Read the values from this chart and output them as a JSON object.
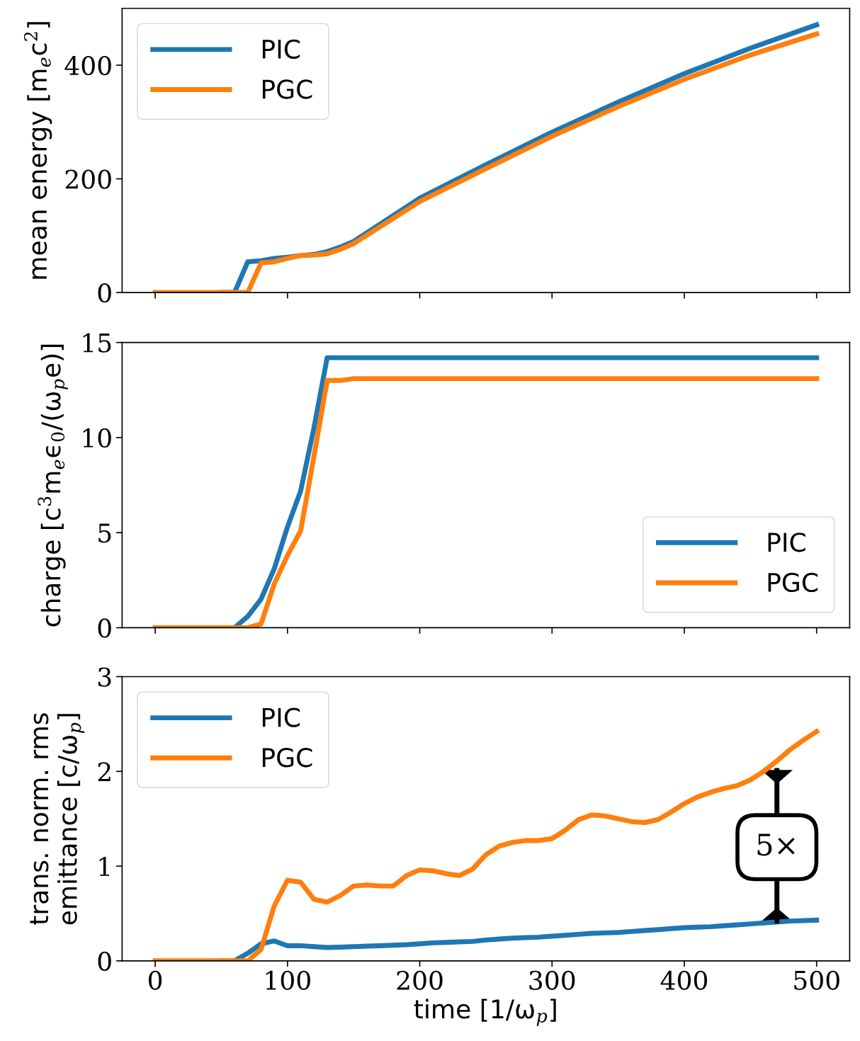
{
  "chart_data": [
    {
      "type": "line",
      "ylabel": "mean energy [m$_{e}$c$^{2}$]",
      "xlim": [
        -25,
        525
      ],
      "xticks": [
        0,
        100,
        200,
        300,
        400,
        500
      ],
      "ylim": [
        0,
        500
      ],
      "yticks": [
        0,
        200,
        400
      ],
      "tick_labels": "y",
      "grid": false,
      "legend": "top left",
      "x": [
        0,
        10,
        20,
        30,
        40,
        50,
        60,
        70,
        80,
        90,
        100,
        110,
        120,
        130,
        140,
        150,
        200,
        250,
        300,
        350,
        400,
        450,
        500
      ],
      "series": [
        {
          "name": "PIC",
          "color": "#1f77b4",
          "values": [
            null,
            null,
            null,
            null,
            null,
            0,
            0,
            54,
            56,
            60,
            62,
            65,
            67,
            72,
            80,
            90,
            166,
            225,
            282,
            335,
            385,
            430,
            471
          ]
        },
        {
          "name": "PGC",
          "color": "#ff7f0e",
          "values": [
            0,
            0,
            0,
            0,
            0,
            0,
            0,
            0,
            52,
            54,
            60,
            65,
            66,
            68,
            76,
            86,
            160,
            218,
            275,
            327,
            375,
            418,
            455
          ]
        }
      ]
    },
    {
      "type": "line",
      "ylabel": "charge [c$^{3}$m$_{e}$ϵ$_{0}$/(ω$_{p}$e)]",
      "xlim": [
        -25,
        525
      ],
      "xticks": [
        0,
        100,
        200,
        300,
        400,
        500
      ],
      "ylim": [
        0,
        15
      ],
      "yticks": [
        0,
        5,
        10,
        15
      ],
      "tick_labels": "y",
      "grid": false,
      "legend": "bottom right",
      "x": [
        0,
        10,
        20,
        30,
        40,
        50,
        60,
        70,
        80,
        90,
        100,
        110,
        120,
        130,
        140,
        150,
        500
      ],
      "series": [
        {
          "name": "PIC",
          "color": "#1f77b4",
          "values": [
            null,
            null,
            null,
            null,
            null,
            0,
            0,
            0.6,
            1.5,
            3.1,
            5.3,
            7.2,
            10.5,
            14.2,
            14.2,
            14.2,
            14.2
          ]
        },
        {
          "name": "PGC",
          "color": "#ff7f0e",
          "values": [
            0,
            0,
            0,
            0,
            0,
            0,
            0,
            0,
            0.2,
            2.3,
            3.8,
            5.1,
            9.0,
            13.0,
            13.0,
            13.1,
            13.1
          ]
        }
      ]
    },
    {
      "type": "line",
      "xlabel": "time [1/ω$_{p}$]",
      "ylabel": "trans. norm. rms\nemittance [c/ω$_{p}$]",
      "xlim": [
        -25,
        525
      ],
      "xticks": [
        0,
        100,
        200,
        300,
        400,
        500
      ],
      "ylim": [
        0,
        3
      ],
      "yticks": [
        0,
        1,
        2,
        3
      ],
      "grid": false,
      "legend": "top left",
      "annotations": [
        "5×"
      ],
      "x": [
        0,
        10,
        20,
        30,
        40,
        50,
        60,
        70,
        80,
        90,
        100,
        110,
        120,
        130,
        140,
        150,
        160,
        170,
        180,
        190,
        200,
        210,
        220,
        230,
        240,
        250,
        260,
        270,
        280,
        290,
        300,
        310,
        320,
        330,
        340,
        350,
        360,
        370,
        380,
        390,
        400,
        410,
        420,
        430,
        440,
        450,
        460,
        470,
        480,
        490,
        500
      ],
      "series": [
        {
          "name": "PIC",
          "color": "#1f77b4",
          "values": [
            null,
            null,
            null,
            null,
            null,
            0,
            0,
            0.08,
            0.18,
            0.21,
            0.16,
            0.16,
            0.15,
            0.14,
            0.145,
            0.15,
            0.155,
            0.16,
            0.165,
            0.17,
            0.18,
            0.19,
            0.195,
            0.2,
            0.205,
            0.22,
            0.23,
            0.24,
            0.245,
            0.25,
            0.26,
            0.27,
            0.28,
            0.29,
            0.295,
            0.3,
            0.31,
            0.32,
            0.33,
            0.34,
            0.35,
            0.355,
            0.36,
            0.37,
            0.38,
            0.39,
            0.4,
            0.41,
            0.42,
            0.425,
            0.43
          ]
        },
        {
          "name": "PGC",
          "color": "#ff7f0e",
          "values": [
            0,
            0,
            0,
            0,
            0,
            0,
            0,
            0,
            0.12,
            0.58,
            0.85,
            0.83,
            0.65,
            0.62,
            0.69,
            0.79,
            0.8,
            0.79,
            0.79,
            0.9,
            0.96,
            0.95,
            0.92,
            0.9,
            0.97,
            1.12,
            1.21,
            1.25,
            1.27,
            1.27,
            1.29,
            1.38,
            1.49,
            1.54,
            1.53,
            1.5,
            1.47,
            1.46,
            1.49,
            1.57,
            1.66,
            1.73,
            1.78,
            1.82,
            1.85,
            1.91,
            2.0,
            2.11,
            2.23,
            2.33,
            2.42
          ]
        }
      ]
    }
  ]
}
